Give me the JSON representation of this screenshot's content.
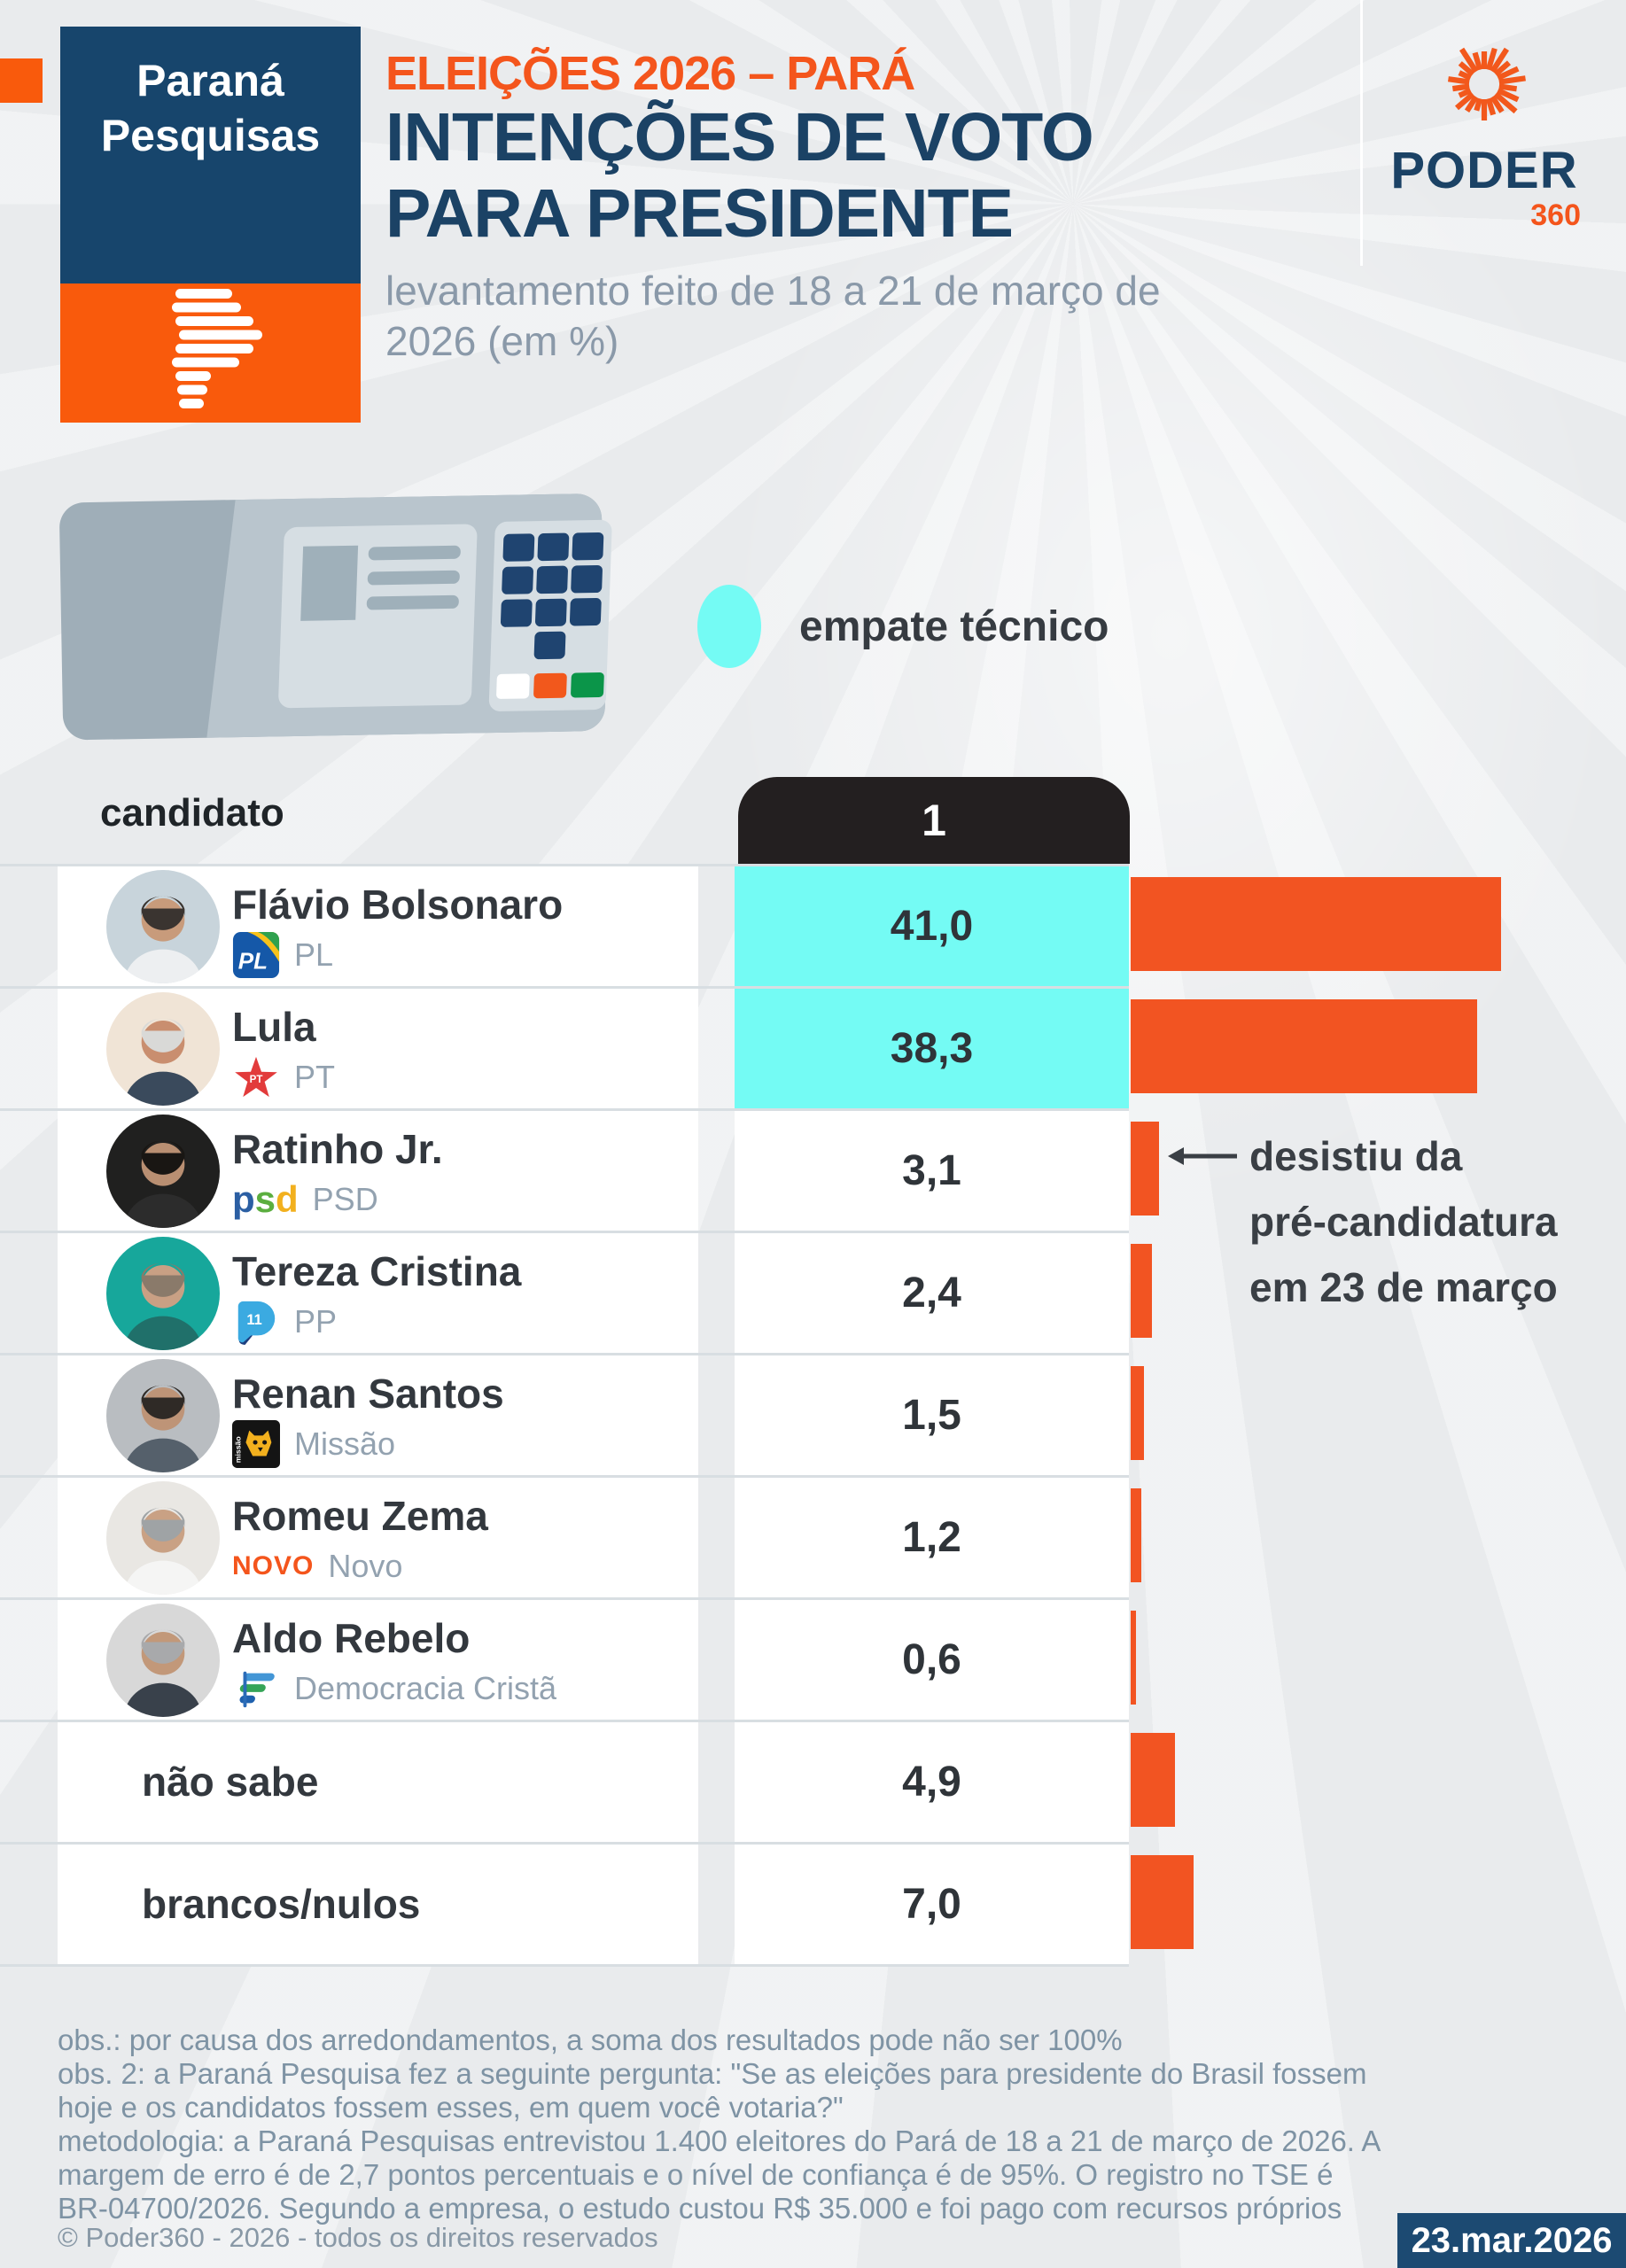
{
  "colors": {
    "bg": "#E9EBED",
    "row-white": "#FFFFFF",
    "divider": "#D8DEE2",
    "bar-orange": "#F25422",
    "brand-orange": "#F95A0C",
    "brand-blue": "#17456C",
    "title-blue": "#1B4265",
    "kicker-orange": "#F4551C",
    "tie-cyan": "#74FBF4",
    "pill-black": "#231F20",
    "text-dark": "#33383E",
    "text-gray": "#8A99A9",
    "footnote-gray": "#7E93A4",
    "datebox-blue": "#1C4A72"
  },
  "header": {
    "brand_line1": "Paraná",
    "brand_line2": "Pesquisas",
    "kicker": "ELEIÇÕES 2026 – PARÁ",
    "title_line1": "INTENÇÕES DE VOTO",
    "title_line2": "PARA PRESIDENTE",
    "subtitle": "levantamento feito de 18 a 21 de março de 2026 (em %)",
    "logo_word": "PODER",
    "logo_suffix": "360"
  },
  "legend": {
    "label": "empate técnico"
  },
  "table": {
    "candidate_header": "candidato",
    "scenario_header": "1",
    "rows": [
      {
        "name": "Flávio Bolsonaro",
        "party": "PL",
        "badge": "pl",
        "badge_text": "PL",
        "value": "41,0",
        "value_num": 41.0,
        "tie": true,
        "photo": {
          "bg": "#C8D4DB",
          "skin": "#C89B7B",
          "hair": "#3A3430",
          "shirt": "#EDEFF1"
        }
      },
      {
        "name": "Lula",
        "party": "PT",
        "badge": "pt",
        "badge_text": "PT",
        "value": "38,3",
        "value_num": 38.3,
        "tie": true,
        "photo": {
          "bg": "#F0E4D6",
          "skin": "#C98E6F",
          "hair": "#D9D9D7",
          "shirt": "#3A4A5C"
        }
      },
      {
        "name": "Ratinho Jr.",
        "party": "PSD",
        "badge": "psd",
        "badge_text": "psd",
        "value": "3,1",
        "value_num": 3.1,
        "tie": false,
        "photo": {
          "bg": "#20201F",
          "skin": "#B98F72",
          "hair": "#191613",
          "shirt": "#2C2C2C"
        }
      },
      {
        "name": "Tereza Cristina",
        "party": "PP",
        "badge": "pp",
        "badge_text": "11",
        "value": "2,4",
        "value_num": 2.4,
        "tie": false,
        "photo": {
          "bg": "#17A79B",
          "skin": "#C9A084",
          "hair": "#8A7A6A",
          "shirt": "#20706A"
        }
      },
      {
        "name": "Renan Santos",
        "party": "Missão",
        "badge": "missao",
        "badge_text": "missão",
        "value": "1,5",
        "value_num": 1.5,
        "tie": false,
        "photo": {
          "bg": "#B9BDC1",
          "skin": "#BE9477",
          "hair": "#2F2A26",
          "shirt": "#55606B"
        }
      },
      {
        "name": "Romeu Zema",
        "party": "Novo",
        "badge": "novo",
        "badge_text": "NOVO",
        "value": "1,2",
        "value_num": 1.2,
        "tie": false,
        "photo": {
          "bg": "#E9E7E3",
          "skin": "#C9A184",
          "hair": "#9FA3A5",
          "shirt": "#F5F5F4"
        }
      },
      {
        "name": "Aldo Rebelo",
        "party": "Democracia Cristã",
        "badge": "dc",
        "badge_text": "",
        "value": "0,6",
        "value_num": 0.6,
        "tie": false,
        "photo": {
          "bg": "#D8D8D8",
          "skin": "#C29879",
          "hair": "#A8A9AB",
          "shirt": "#39414B"
        }
      },
      {
        "name": "não sabe",
        "party": null,
        "badge": null,
        "badge_text": "",
        "value": "4,9",
        "value_num": 4.9,
        "tie": false,
        "photo": null
      },
      {
        "name": "brancos/nulos",
        "party": null,
        "badge": null,
        "badge_text": "",
        "value": "7,0",
        "value_num": 7.0,
        "tie": false,
        "photo": null
      }
    ]
  },
  "annotation": {
    "lines": [
      "desistiu da",
      "pré-candidatura",
      "em 23 de março"
    ]
  },
  "footnotes": [
    "obs.: por causa dos arredondamentos, a soma dos resultados pode não ser 100%",
    "obs. 2: a Paraná Pesquisa fez a seguinte pergunta: \"Se as eleições para presidente do Brasil fossem hoje e os candidatos fossem esses, em quem você votaria?\"",
    "metodologia: a Paraná Pesquisas entrevistou 1.400 eleitores do Pará de 18 a 21 de março de 2026. A margem de erro é de 2,7 pontos percentuais e o nível de confiança é de 95%. O registro no TSE é BR-04700/2026. Segundo a empresa, o estudo custou R$ 35.000 e foi pago com recursos próprios"
  ],
  "copyright": "© Poder360 - 2026 - todos os direitos reservados",
  "date_badge": "23.mar.2026",
  "chart_data": {
    "type": "bar",
    "orientation": "horizontal",
    "title": "ELEIÇÕES 2026 – PARÁ — INTENÇÕES DE VOTO PARA PRESIDENTE",
    "subtitle": "levantamento feito de 18 a 21 de março de 2026 (em %)",
    "scenario": "1",
    "categories": [
      "Flávio Bolsonaro (PL)",
      "Lula (PT)",
      "Ratinho Jr. (PSD)",
      "Tereza Cristina (PP)",
      "Renan Santos (Missão)",
      "Romeu Zema (Novo)",
      "Aldo Rebelo (Democracia Cristã)",
      "não sabe",
      "brancos/nulos"
    ],
    "values": [
      41.0,
      38.3,
      3.1,
      2.4,
      1.5,
      1.2,
      0.6,
      4.9,
      7.0
    ],
    "unit": "%",
    "bar_color": "#F25422",
    "highlight": {
      "label": "empate técnico",
      "color": "#74FBF4",
      "applies_to": [
        "Flávio Bolsonaro (PL)",
        "Lula (PT)"
      ]
    },
    "annotations": [
      "Ratinho Jr. (PSD): desistiu da pré-candidatura em 23 de março"
    ]
  }
}
